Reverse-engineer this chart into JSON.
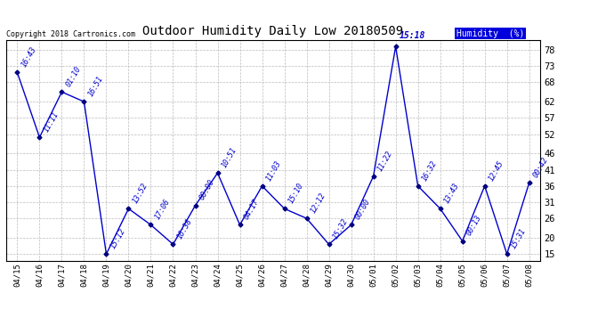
{
  "title": "Outdoor Humidity Daily Low 20180509",
  "copyright": "Copyright 2018 Cartronics.com",
  "legend_label": "Humidity  (%)",
  "x_labels": [
    "04/15",
    "04/16",
    "04/17",
    "04/18",
    "04/19",
    "04/20",
    "04/21",
    "04/22",
    "04/23",
    "04/24",
    "04/25",
    "04/26",
    "04/27",
    "04/28",
    "04/29",
    "04/30",
    "05/01",
    "05/02",
    "05/03",
    "05/04",
    "05/05",
    "05/06",
    "05/07",
    "05/08"
  ],
  "y_values": [
    71,
    51,
    65,
    62,
    15,
    29,
    24,
    18,
    30,
    40,
    24,
    36,
    29,
    26,
    18,
    24,
    39,
    79,
    36,
    29,
    19,
    36,
    15,
    37
  ],
  "point_labels": [
    "16:43",
    "11:11",
    "01:10",
    "16:51",
    "15:12",
    "13:52",
    "17:06",
    "16:38",
    "00:00",
    "10:51",
    "04:17",
    "11:03",
    "15:10",
    "12:12",
    "15:32",
    "00:00",
    "11:22",
    "15:18",
    "16:32",
    "13:43",
    "00:13",
    "12:45",
    "15:31",
    "00:42"
  ],
  "line_color": "#0000cc",
  "marker_color": "#000080",
  "label_color": "#0000cc",
  "bg_color": "#ffffff",
  "grid_color": "#bbbbbb",
  "title_color": "#000000",
  "legend_bg": "#0000dd",
  "legend_fg": "#ffffff",
  "ylim": [
    13,
    81
  ],
  "yticks": [
    15,
    20,
    26,
    31,
    36,
    41,
    46,
    52,
    57,
    62,
    68,
    73,
    78
  ],
  "fig_width": 6.9,
  "fig_height": 3.75,
  "dpi": 100
}
